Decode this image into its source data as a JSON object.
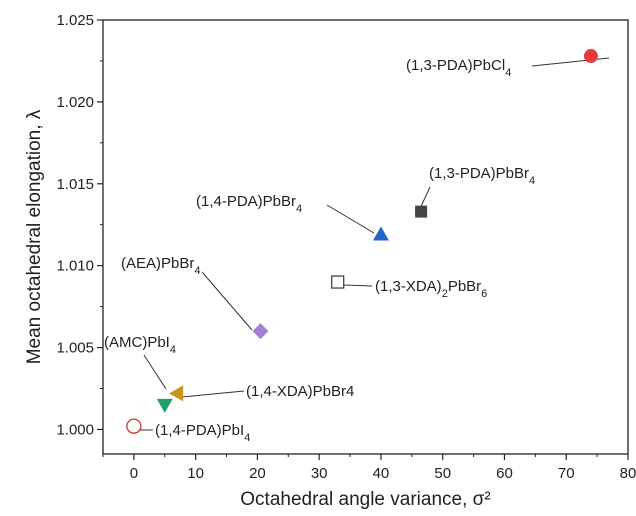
{
  "chart_data": {
    "type": "scatter",
    "xlabel": "Octahedral angle variance, σ²",
    "ylabel": "Mean octahedral elongation, λ",
    "xlim": [
      -5,
      80
    ],
    "ylim": [
      0.9985,
      1.025
    ],
    "x_ticks": [
      0,
      10,
      20,
      30,
      40,
      50,
      60,
      70,
      80
    ],
    "y_ticks": [
      1.0,
      1.005,
      1.01,
      1.015,
      1.02,
      1.025
    ],
    "y_tick_labels": [
      "1.000",
      "1.005",
      "1.010",
      "1.015",
      "1.020",
      "1.025"
    ],
    "grid": false,
    "points": [
      {
        "label_parts": [
          [
            "(1,3-PDA)PbCl",
            ""
          ],
          [
            "4",
            "sub"
          ]
        ],
        "x": 74,
        "y": 1.0228,
        "marker": "circle",
        "color": "#e8393b",
        "filled": true
      },
      {
        "label_parts": [
          [
            "(1,3-PDA)PbBr",
            ""
          ],
          [
            "4",
            "sub"
          ]
        ],
        "x": 46.5,
        "y": 1.0133,
        "marker": "square",
        "color": "#444444",
        "filled": true
      },
      {
        "label_parts": [
          [
            "(1,4-PDA)PbBr",
            ""
          ],
          [
            "4",
            "sub"
          ]
        ],
        "x": 40,
        "y": 1.0119,
        "marker": "triangle-up",
        "color": "#2266cc",
        "filled": true
      },
      {
        "label_parts": [
          [
            "(1,3-XDA)",
            ""
          ],
          [
            "2",
            "sub"
          ],
          [
            "PbBr",
            ""
          ],
          [
            "6",
            "sub"
          ]
        ],
        "x": 33,
        "y": 1.009,
        "marker": "square",
        "color": "#444444",
        "filled": false
      },
      {
        "label_parts": [
          [
            "(AEA)PbBr",
            ""
          ],
          [
            "4",
            "sub"
          ]
        ],
        "x": 20.5,
        "y": 1.006,
        "marker": "diamond",
        "color": "#a77ed6",
        "filled": true
      },
      {
        "label_parts": [
          [
            "(AMC)PbI",
            ""
          ],
          [
            "4",
            "sub"
          ]
        ],
        "x": 7,
        "y": 1.0022,
        "marker": "triangle-left",
        "color": "#c8961e",
        "filled": true
      },
      {
        "label_parts": [
          [
            "(1,4-XDA)PbBr4",
            ""
          ]
        ],
        "x": 5,
        "y": 1.0015,
        "marker": "triangle-down",
        "color": "#22a06b",
        "filled": true
      },
      {
        "label_parts": [
          [
            "(1,4-PDA)PbI",
            ""
          ],
          [
            "4",
            "sub"
          ]
        ],
        "x": 0,
        "y": 1.0002,
        "marker": "circle",
        "color": "#c0392b",
        "filled": false
      }
    ]
  }
}
